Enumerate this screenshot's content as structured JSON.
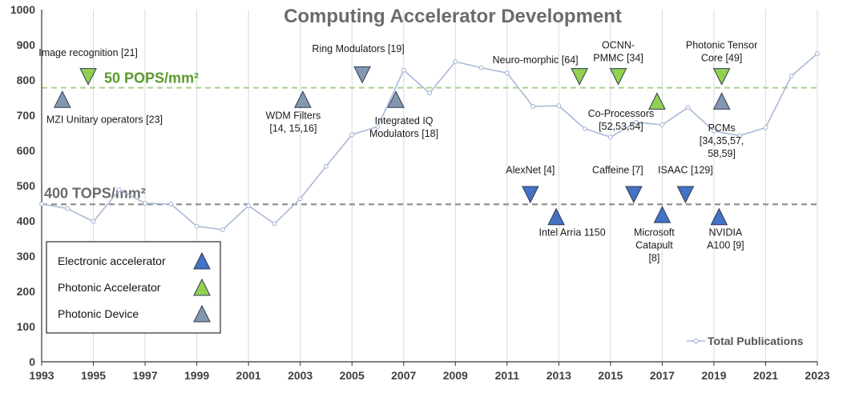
{
  "chart_data": {
    "type": "line",
    "title": "Computing Accelerator Development",
    "xlabel": "",
    "ylabel": "",
    "xlim": [
      1993,
      2023
    ],
    "ylim": [
      0,
      1000
    ],
    "x_ticks": [
      "1993",
      "1995",
      "1997",
      "1999",
      "2001",
      "2003",
      "2005",
      "2007",
      "2009",
      "2011",
      "2013",
      "2015",
      "2017",
      "2019",
      "2021",
      "2023"
    ],
    "y_ticks": [
      "0",
      "100",
      "200",
      "300",
      "400",
      "500",
      "600",
      "700",
      "800",
      "900",
      "1000"
    ],
    "series": [
      {
        "name": "Total Publications",
        "color": "#a9b9d6",
        "x": [
          1993,
          1994,
          1995,
          1996,
          1997,
          1998,
          1999,
          2000,
          2001,
          2002,
          2003,
          2004,
          2005,
          2006,
          2007,
          2008,
          2009,
          2010,
          2011,
          2012,
          2013,
          2014,
          2015,
          2016,
          2017,
          2018,
          2019,
          2020,
          2021,
          2022,
          2023
        ],
        "y": [
          448,
          435,
          398,
          488,
          450,
          448,
          385,
          375,
          443,
          392,
          463,
          555,
          645,
          668,
          828,
          763,
          852,
          835,
          820,
          725,
          727,
          662,
          638,
          680,
          673,
          722,
          655,
          642,
          665,
          812,
          875
        ]
      }
    ],
    "reference_lines": [
      {
        "label": "50 POPS/mm²",
        "y": 778,
        "color": "#a9d18e"
      },
      {
        "label": "400 TOPS/mm²",
        "y": 447,
        "color": "#8c8c8c"
      }
    ],
    "markers": [
      {
        "category": "photonic_device",
        "direction": "up",
        "x": 1993.8,
        "y": 745,
        "label": [
          "MZI Unitary operators [23]"
        ],
        "label_anchor": "start",
        "label_dx": -20,
        "label_y": 678
      },
      {
        "category": "photonic_accelerator",
        "direction": "down",
        "x": 1994.8,
        "y": 810,
        "label": [
          "Image recognition [21]"
        ],
        "label_anchor": "middle",
        "label_dx": 0,
        "label_y": 868
      },
      {
        "category": "photonic_device",
        "direction": "down",
        "x": 2005.4,
        "y": 815,
        "label": [
          "Ring Modulators [19]"
        ],
        "label_anchor": "middle",
        "label_dx": -5,
        "label_y": 880
      },
      {
        "category": "photonic_device",
        "direction": "up",
        "x": 2003.1,
        "y": 745,
        "label": [
          "WDM Filters",
          "[14, 15,16]"
        ],
        "label_anchor": "middle",
        "label_dx": -12,
        "label_y": 690
      },
      {
        "category": "photonic_device",
        "direction": "up",
        "x": 2006.7,
        "y": 745,
        "label": [
          "Integrated IQ",
          "Modulators [18]"
        ],
        "label_anchor": "middle",
        "label_dx": 10,
        "label_y": 675
      },
      {
        "category": "photonic_accelerator",
        "direction": "down",
        "x": 2013.8,
        "y": 810,
        "label": [
          "Neuro-morphic [64]"
        ],
        "label_anchor": "middle",
        "label_dx": -55,
        "label_y": 848
      },
      {
        "category": "photonic_accelerator",
        "direction": "down",
        "x": 2015.3,
        "y": 810,
        "label": [
          "OCNN-",
          "PMMC [34]"
        ],
        "label_anchor": "middle",
        "label_dx": 0,
        "label_y": 890
      },
      {
        "category": "photonic_accelerator",
        "direction": "up",
        "x": 2016.8,
        "y": 740,
        "label": [
          "Co-Processors",
          "[52,53,54]"
        ],
        "label_anchor": "middle",
        "label_dx": -45,
        "label_y": 695
      },
      {
        "category": "photonic_accelerator",
        "direction": "down",
        "x": 2019.3,
        "y": 810,
        "label": [
          "Photonic Tensor",
          "Core [49]"
        ],
        "label_anchor": "middle",
        "label_dx": 0,
        "label_y": 890
      },
      {
        "category": "photonic_device",
        "direction": "up",
        "x": 2019.3,
        "y": 740,
        "label": [
          "PCMs",
          "[34,35,57,",
          "58,59]"
        ],
        "label_anchor": "middle",
        "label_dx": 0,
        "label_y": 655
      },
      {
        "category": "electronic",
        "direction": "down",
        "x": 2011.9,
        "y": 475,
        "label": [
          "AlexNet [4]"
        ],
        "label_anchor": "middle",
        "label_dx": 0,
        "label_y": 535
      },
      {
        "category": "electronic",
        "direction": "up",
        "x": 2012.9,
        "y": 412,
        "label": [
          "Intel Arria 1150"
        ],
        "label_anchor": "middle",
        "label_dx": 20,
        "label_y": 358
      },
      {
        "category": "electronic",
        "direction": "down",
        "x": 2015.9,
        "y": 475,
        "label": [
          "Caffeine [7]"
        ],
        "label_anchor": "middle",
        "label_dx": -20,
        "label_y": 535
      },
      {
        "category": "electronic",
        "direction": "up",
        "x": 2017.0,
        "y": 418,
        "label": [
          "Microsoft",
          "Catapult",
          "[8]"
        ],
        "label_anchor": "middle",
        "label_dx": -10,
        "label_y": 358
      },
      {
        "category": "electronic",
        "direction": "down",
        "x": 2017.9,
        "y": 475,
        "label": [
          "ISAAC [129]"
        ],
        "label_anchor": "middle",
        "label_dx": 0,
        "label_y": 535
      },
      {
        "category": "electronic",
        "direction": "up",
        "x": 2019.2,
        "y": 412,
        "label": [
          "NVIDIA",
          "A100 [9]"
        ],
        "label_anchor": "middle",
        "label_dx": 8,
        "label_y": 358
      }
    ],
    "legend_categories": [
      {
        "key": "electronic",
        "label": "Electronic accelerator",
        "color": "#4472c4"
      },
      {
        "key": "photonic_accelerator",
        "label": "Photonic Accelerator",
        "color": "#92d050"
      },
      {
        "key": "photonic_device",
        "label": "Photonic Device",
        "color": "#8497b0"
      }
    ],
    "series_legend": {
      "label": "Total Publications",
      "position": "bottom-right"
    }
  }
}
